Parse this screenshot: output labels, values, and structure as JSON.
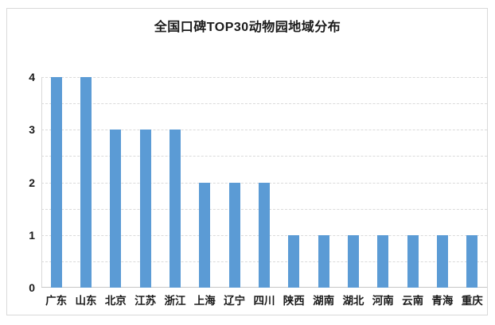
{
  "chart": {
    "title": "全国口碑TOP30动物园地域分布"
  },
  "chart_data": {
    "type": "bar",
    "title": "全国口碑TOP30动物园地域分布",
    "categories": [
      "广东",
      "山东",
      "北京",
      "江苏",
      "浙江",
      "上海",
      "辽宁",
      "四川",
      "陕西",
      "湖南",
      "湖北",
      "河南",
      "云南",
      "青海",
      "重庆"
    ],
    "values": [
      4,
      4,
      3,
      3,
      3,
      2,
      2,
      2,
      1,
      1,
      1,
      1,
      1,
      1,
      1
    ],
    "xlabel": "",
    "ylabel": "",
    "ylim": [
      0,
      4
    ],
    "yticks": [
      0,
      1,
      2,
      3,
      4
    ],
    "grid_step": 0.5,
    "grid_on": true,
    "legend_position": "none",
    "bar_color": "#5b9bd5",
    "gridline_color": "#dadada",
    "axis_line_color": "#c6c6c6",
    "frame_border_color": "#d9d9d9",
    "text_color": "#1a1a1a"
  }
}
